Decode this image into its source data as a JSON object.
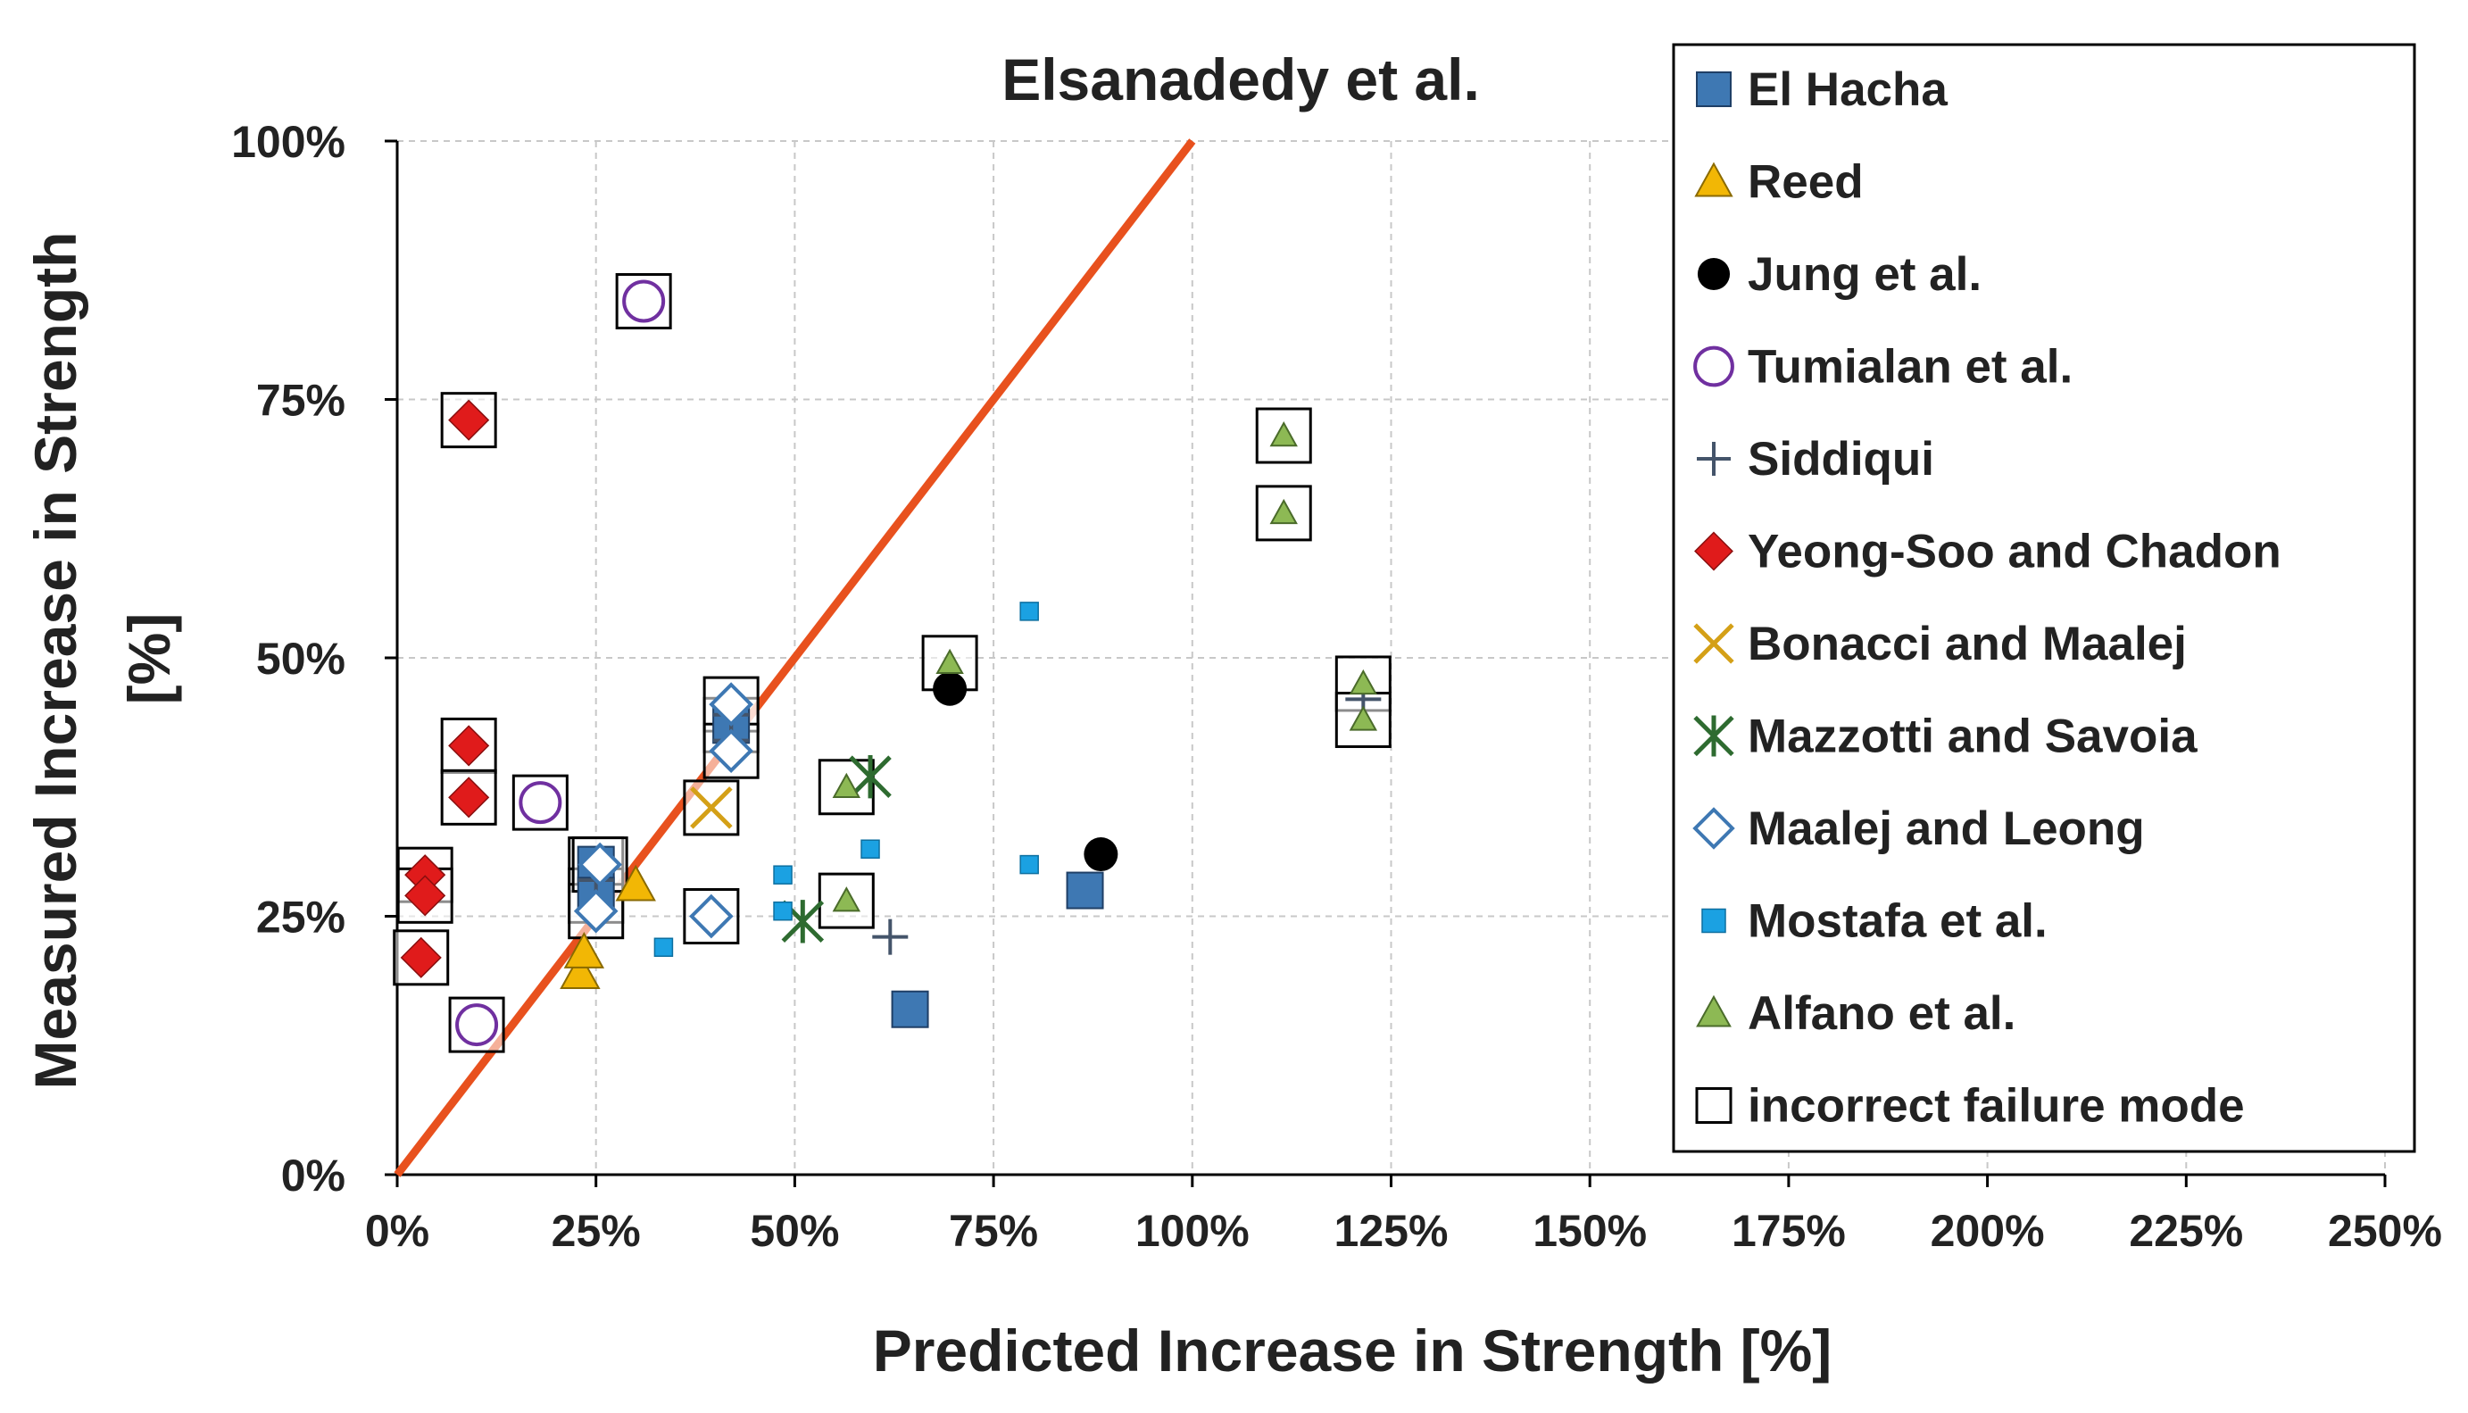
{
  "chart_data": {
    "type": "scatter",
    "title": "Elsanadedy et al.",
    "xlabel": "Predicted Increase in Strength [%]",
    "ylabel_lines": [
      "Measured Increase in Strength",
      "[%]"
    ],
    "xlim": [
      0,
      250
    ],
    "ylim": [
      0,
      100
    ],
    "x_ticks": [
      0,
      25,
      50,
      75,
      100,
      125,
      150,
      175,
      200,
      225,
      250
    ],
    "y_ticks": [
      0,
      25,
      50,
      75,
      100
    ],
    "x_tick_labels": [
      "0%",
      "25%",
      "50%",
      "75%",
      "100%",
      "125%",
      "150%",
      "175%",
      "200%",
      "225%",
      "250%"
    ],
    "y_tick_labels": [
      "0%",
      "25%",
      "50%",
      "75%",
      "100%"
    ],
    "grid": true,
    "reference_line": {
      "name": "1:1 line",
      "from": [
        0,
        0
      ],
      "to": [
        100,
        100
      ],
      "color": "#E8511E"
    },
    "legend_position": "right",
    "series": [
      {
        "name": "El Hacha",
        "marker": "square",
        "color": "#3E78B3",
        "points": [
          {
            "x": 86.5,
            "y": 27.5
          },
          {
            "x": 64.5,
            "y": 16
          },
          {
            "x": 25,
            "y": 30,
            "boxed": true
          },
          {
            "x": 25,
            "y": 27,
            "boxed": true
          },
          {
            "x": 42,
            "y": 43.5,
            "boxed": true
          }
        ]
      },
      {
        "name": "Reed",
        "marker": "triangle",
        "color": "#F2B705",
        "points": [
          {
            "x": 23,
            "y": 19.5
          },
          {
            "x": 23.5,
            "y": 21.5
          },
          {
            "x": 30,
            "y": 28
          }
        ]
      },
      {
        "name": "Jung et al.",
        "marker": "circle-filled",
        "color": "#000000",
        "points": [
          {
            "x": 69.5,
            "y": 47
          },
          {
            "x": 88.5,
            "y": 31
          }
        ]
      },
      {
        "name": "Tumialan et al.",
        "marker": "circle-open",
        "color": "#7030A0",
        "points": [
          {
            "x": 31,
            "y": 84.5,
            "boxed": true
          },
          {
            "x": 18,
            "y": 36,
            "boxed": true
          },
          {
            "x": 10,
            "y": 14.5,
            "boxed": true
          }
        ]
      },
      {
        "name": "Siddiqui",
        "marker": "plus",
        "color": "#44546A",
        "points": [
          {
            "x": 62,
            "y": 23
          },
          {
            "x": 42,
            "y": 42
          },
          {
            "x": 42,
            "y": 44.5
          },
          {
            "x": 25,
            "y": 28.5
          },
          {
            "x": 121.5,
            "y": 46
          }
        ]
      },
      {
        "name": "Yeong-Soo and Chadon",
        "marker": "diamond",
        "color": "#E01B1B",
        "points": [
          {
            "x": 9,
            "y": 73,
            "boxed": true
          },
          {
            "x": 9,
            "y": 41.5,
            "boxed": true
          },
          {
            "x": 9,
            "y": 36.5,
            "boxed": true
          },
          {
            "x": 3.5,
            "y": 29,
            "boxed": true
          },
          {
            "x": 3.5,
            "y": 27,
            "boxed": true
          },
          {
            "x": 3,
            "y": 21,
            "boxed": true
          }
        ]
      },
      {
        "name": "Bonacci and Maalej",
        "marker": "x",
        "color": "#D4A017",
        "points": [
          {
            "x": 39.5,
            "y": 35.5,
            "boxed": true
          }
        ]
      },
      {
        "name": "Mazzotti and Savoia",
        "marker": "star",
        "color": "#2E6B30",
        "points": [
          {
            "x": 59.5,
            "y": 38.5
          },
          {
            "x": 51,
            "y": 24.5
          }
        ]
      },
      {
        "name": "Maalej and Leong",
        "marker": "diamond-open",
        "color": "#3E78B3",
        "points": [
          {
            "x": 39.5,
            "y": 25,
            "boxed": true
          },
          {
            "x": 42,
            "y": 45.5,
            "boxed": true
          },
          {
            "x": 42,
            "y": 41,
            "boxed": true
          },
          {
            "x": 25,
            "y": 25.5,
            "boxed": true
          },
          {
            "x": 25.5,
            "y": 30,
            "boxed": true
          }
        ]
      },
      {
        "name": "Mostafa et al.",
        "marker": "square-small",
        "color": "#1BA1E2",
        "points": [
          {
            "x": 79.5,
            "y": 54.5
          },
          {
            "x": 79.5,
            "y": 30
          },
          {
            "x": 59.5,
            "y": 31.5
          },
          {
            "x": 48.5,
            "y": 29
          },
          {
            "x": 48.5,
            "y": 25.5
          },
          {
            "x": 33.5,
            "y": 22
          }
        ]
      },
      {
        "name": "Alfano et al.",
        "marker": "triangle-small",
        "color": "#8DB954",
        "points": [
          {
            "x": 111.5,
            "y": 71.5,
            "boxed": true
          },
          {
            "x": 111.5,
            "y": 64,
            "boxed": true
          },
          {
            "x": 121.5,
            "y": 47.5,
            "boxed": true
          },
          {
            "x": 121.5,
            "y": 44,
            "boxed": true
          },
          {
            "x": 69.5,
            "y": 49.5,
            "boxed": true
          },
          {
            "x": 56.5,
            "y": 37.5,
            "boxed": true
          },
          {
            "x": 56.5,
            "y": 26.5,
            "boxed": true
          }
        ]
      },
      {
        "name": "incorrect failure mode",
        "marker": "box-open",
        "color": "#000000",
        "points": []
      }
    ]
  }
}
